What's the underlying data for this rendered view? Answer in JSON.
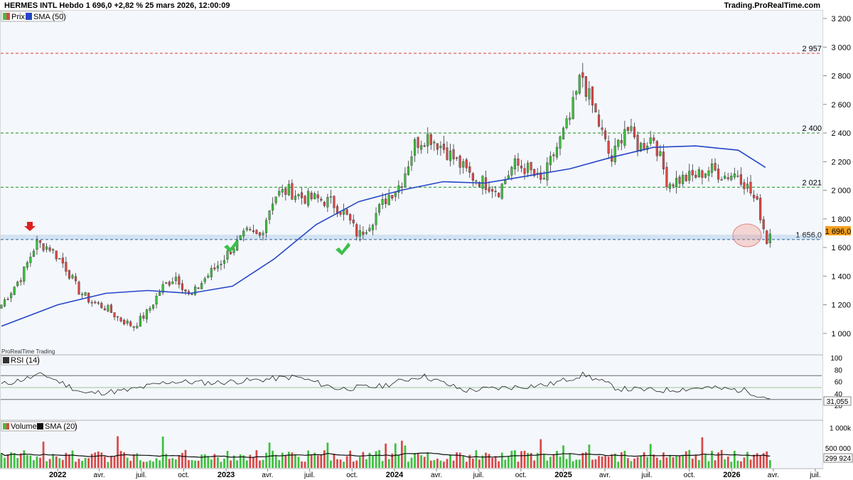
{
  "header": {
    "title": "HERMES INTL Hebdo 1 696,0 +2,82 % 25 mars 2026, 12:00:09",
    "site": "Trading.ProRealTime.com"
  },
  "legend": {
    "price": "Prix",
    "sma50": "SMA (50)",
    "watermark": "ProRealTime Trading",
    "rsi": "RSI (14)",
    "volume": "Volume",
    "sma20": "SMA (20)"
  },
  "colors": {
    "up": "#3fbf3f",
    "down": "#d94848",
    "sma": "#2446c8",
    "level_red": "#e05050",
    "level_green": "#2e9a3a",
    "current": "#2c5f8a"
  },
  "price_levels": [
    {
      "label": "2 957",
      "value": 2957,
      "style": "red-dashed"
    },
    {
      "label": "2 400",
      "value": 2400,
      "style": "green-dashed"
    },
    {
      "label": "2 021",
      "value": 2021,
      "style": "green-dashed"
    },
    {
      "label": "1 656,0",
      "value": 1656,
      "style": "blue-dashed"
    }
  ],
  "current_price_label": "1 696,0",
  "rsi_value_label": "31,055",
  "volume_sma_label": "299 924",
  "chart_data": [
    {
      "type": "line",
      "panel": "price",
      "title": "HERMES INTL Hebdo",
      "ylim": [
        880,
        3220
      ],
      "yticks": [
        1000,
        1200,
        1400,
        1600,
        1800,
        2000,
        2200,
        2400,
        2600,
        2800,
        3000,
        3200
      ],
      "ytick_labels": [
        "1 000",
        "1 200",
        "1 400",
        "1 600",
        "1 800",
        "2 000",
        "2 200",
        "2 400",
        "2 600",
        "2 800",
        "3 000",
        "3 200"
      ],
      "x_start": "2021-09-01",
      "x_end": "2026-07-15",
      "xticks": [
        "2022-01-01",
        "2022-04-01",
        "2022-07-01",
        "2022-10-01",
        "2023-01-01",
        "2023-04-01",
        "2023-07-01",
        "2023-10-01",
        "2024-01-01",
        "2024-04-01",
        "2024-07-01",
        "2024-10-01",
        "2025-01-01",
        "2025-04-01",
        "2025-07-01",
        "2025-10-01",
        "2026-01-01",
        "2026-04-01",
        "2026-07-01"
      ],
      "xtick_labels": [
        "2022",
        "avr.",
        "juil.",
        "oct.",
        "2023",
        "avr.",
        "juil.",
        "oct.",
        "2024",
        "avr.",
        "juil.",
        "oct.",
        "2025",
        "avr.",
        "juil.",
        "oct.",
        "2026",
        "avr.",
        "juil."
      ],
      "series": [
        {
          "name": "Prix",
          "x": [
            "2021-09-01",
            "2021-10-15",
            "2021-11-15",
            "2021-12-15",
            "2022-01-15",
            "2022-02-15",
            "2022-03-15",
            "2022-04-15",
            "2022-05-15",
            "2022-06-15",
            "2022-07-15",
            "2022-08-15",
            "2022-09-15",
            "2022-10-15",
            "2022-11-15",
            "2022-12-15",
            "2023-01-15",
            "2023-02-15",
            "2023-03-15",
            "2023-04-15",
            "2023-05-15",
            "2023-06-15",
            "2023-07-15",
            "2023-08-15",
            "2023-09-15",
            "2023-10-15",
            "2023-11-15",
            "2023-12-15",
            "2024-01-15",
            "2024-02-15",
            "2024-03-15",
            "2024-04-15",
            "2024-05-15",
            "2024-06-15",
            "2024-07-15",
            "2024-08-15",
            "2024-09-15",
            "2024-10-15",
            "2024-11-15",
            "2024-12-15",
            "2025-01-15",
            "2025-02-10",
            "2025-02-20",
            "2025-03-15",
            "2025-04-15",
            "2025-05-15",
            "2025-06-15",
            "2025-07-15",
            "2025-08-15",
            "2025-09-15",
            "2025-10-15",
            "2025-11-15",
            "2025-12-15",
            "2026-01-15",
            "2026-02-10",
            "2026-02-28",
            "2026-03-10",
            "2026-03-18",
            "2026-03-25"
          ],
          "values": [
            1200,
            1400,
            1630,
            1600,
            1480,
            1300,
            1220,
            1180,
            1100,
            1050,
            1150,
            1320,
            1400,
            1250,
            1380,
            1480,
            1600,
            1700,
            1680,
            1960,
            2000,
            1950,
            1940,
            1920,
            1840,
            1680,
            1800,
            1950,
            2050,
            2330,
            2380,
            2300,
            2200,
            2100,
            2050,
            2000,
            2180,
            2150,
            2050,
            2280,
            2500,
            2820,
            2700,
            2500,
            2200,
            2450,
            2300,
            2380,
            2050,
            2080,
            2100,
            2150,
            2100,
            2120,
            1990,
            1880,
            1750,
            1650,
            1696
          ]
        },
        {
          "name": "SMA (50)",
          "x": [
            "2021-09-01",
            "2022-01-01",
            "2022-04-15",
            "2022-07-15",
            "2022-10-15",
            "2023-01-15",
            "2023-04-15",
            "2023-07-15",
            "2023-10-15",
            "2024-01-15",
            "2024-04-15",
            "2024-07-15",
            "2024-10-15",
            "2025-01-15",
            "2025-04-15",
            "2025-07-15",
            "2025-10-15",
            "2026-01-15",
            "2026-03-15"
          ],
          "values": [
            1050,
            1200,
            1280,
            1300,
            1280,
            1330,
            1520,
            1760,
            1920,
            2000,
            2060,
            2050,
            2100,
            2150,
            2230,
            2300,
            2310,
            2280,
            2160
          ]
        }
      ]
    },
    {
      "type": "line",
      "panel": "rsi",
      "title": "RSI (14)",
      "ylim": [
        0,
        100
      ],
      "yticks": [
        20,
        40,
        60,
        80,
        100
      ],
      "overbought": 70,
      "oversold": 30,
      "series": [
        {
          "name": "RSI (14)",
          "x": [
            "2021-09-01",
            "2021-12-01",
            "2022-03-01",
            "2022-06-01",
            "2022-09-01",
            "2022-12-01",
            "2023-03-01",
            "2023-06-01",
            "2023-09-01",
            "2023-12-01",
            "2024-03-01",
            "2024-06-01",
            "2024-09-01",
            "2024-12-01",
            "2025-02-15",
            "2025-05-01",
            "2025-08-01",
            "2025-11-01",
            "2026-02-01",
            "2026-03-25"
          ],
          "values": [
            55,
            72,
            40,
            45,
            60,
            58,
            62,
            68,
            48,
            52,
            70,
            45,
            50,
            55,
            72,
            48,
            45,
            50,
            45,
            31.055
          ]
        }
      ]
    },
    {
      "type": "bar",
      "panel": "volume",
      "title": "Volume",
      "ylim": [
        0,
        1100000
      ],
      "yticks": [
        500000,
        1000000
      ],
      "ytick_labels": [
        "500 000",
        "1 000k"
      ],
      "series": [
        {
          "name": "Volume",
          "description": "weekly volume bars"
        },
        {
          "name": "SMA (20)",
          "last": 299924
        }
      ]
    }
  ]
}
